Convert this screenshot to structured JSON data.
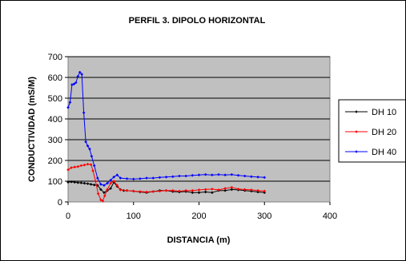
{
  "chart_data": {
    "type": "line",
    "title": "PERFIL 3. DIPOLO HORIZONTAL",
    "xlabel": "DISTANCIA (m)",
    "ylabel": "CONDUCTIVIDAD (mS/M)",
    "xlim": [
      0,
      400
    ],
    "ylim": [
      0,
      700
    ],
    "xticks": [
      "0",
      "100",
      "200",
      "300",
      "400"
    ],
    "yticks": [
      "0",
      "100",
      "200",
      "300",
      "400",
      "500",
      "600",
      "700"
    ],
    "grid": true,
    "legend": "right",
    "plot_background": "#c0c0c0",
    "series": [
      {
        "name": "DH 10",
        "color": "#000000",
        "x": [
          0,
          5,
          10,
          15,
          20,
          25,
          30,
          35,
          40,
          45,
          50,
          55,
          60,
          65,
          70,
          75,
          80,
          85,
          90,
          100,
          110,
          120,
          130,
          140,
          150,
          160,
          170,
          180,
          190,
          200,
          210,
          220,
          230,
          240,
          250,
          260,
          270,
          280,
          290,
          300
        ],
        "y": [
          95,
          97,
          95,
          93,
          92,
          90,
          88,
          85,
          82,
          80,
          60,
          45,
          55,
          65,
          95,
          75,
          60,
          55,
          55,
          52,
          48,
          45,
          50,
          55,
          55,
          50,
          48,
          50,
          45,
          45,
          48,
          45,
          55,
          55,
          60,
          58,
          55,
          52,
          48,
          45
        ]
      },
      {
        "name": "DH 20",
        "color": "#ff0000",
        "x": [
          0,
          5,
          10,
          15,
          20,
          25,
          30,
          35,
          38,
          42,
          46,
          50,
          53,
          56,
          60,
          65,
          70,
          75,
          80,
          90,
          100,
          110,
          120,
          130,
          140,
          150,
          160,
          170,
          180,
          190,
          200,
          210,
          220,
          230,
          240,
          250,
          260,
          270,
          280,
          290,
          300
        ],
        "y": [
          155,
          165,
          168,
          170,
          175,
          178,
          182,
          180,
          150,
          100,
          40,
          10,
          5,
          30,
          60,
          90,
          100,
          80,
          58,
          55,
          52,
          50,
          48,
          50,
          52,
          55,
          55,
          52,
          55,
          55,
          58,
          60,
          62,
          58,
          65,
          70,
          62,
          60,
          58,
          55,
          52
        ]
      },
      {
        "name": "DH 40",
        "color": "#0000ff",
        "x": [
          0,
          3,
          6,
          9,
          12,
          15,
          18,
          21,
          24,
          27,
          30,
          33,
          36,
          40,
          45,
          50,
          55,
          60,
          65,
          70,
          75,
          80,
          90,
          100,
          110,
          120,
          130,
          140,
          150,
          160,
          170,
          180,
          190,
          200,
          210,
          220,
          230,
          240,
          250,
          260,
          270,
          280,
          290,
          300
        ],
        "y": [
          455,
          480,
          565,
          568,
          575,
          605,
          625,
          615,
          430,
          290,
          270,
          255,
          220,
          175,
          115,
          85,
          80,
          90,
          105,
          120,
          130,
          115,
          112,
          110,
          112,
          115,
          115,
          118,
          120,
          122,
          125,
          125,
          128,
          130,
          132,
          130,
          132,
          130,
          132,
          128,
          125,
          122,
          120,
          118
        ]
      }
    ]
  }
}
